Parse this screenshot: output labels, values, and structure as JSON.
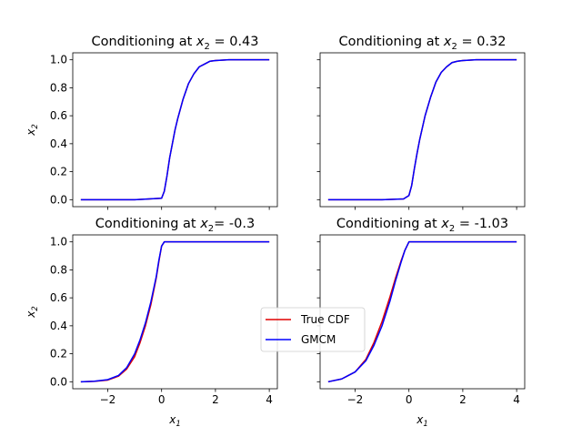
{
  "chart_data": [
    {
      "type": "line",
      "title": "Conditioning at x₂ = 0.43",
      "title_parts": {
        "prefix": "Conditioning at ",
        "var": "x",
        "sub": "2",
        "suffix": " = 0.43"
      },
      "xlabel": "",
      "ylabel": "x₂",
      "ylabel_parts": {
        "var": "x",
        "sub": "2"
      },
      "xlim": [
        -3.3,
        4.3
      ],
      "ylim": [
        -0.05,
        1.05
      ],
      "xticks": [
        -2,
        0,
        2,
        4
      ],
      "xtick_labels": [
        "",
        "",
        "",
        ""
      ],
      "yticks": [
        0.0,
        0.2,
        0.4,
        0.6,
        0.8,
        1.0
      ],
      "ytick_labels": [
        "0.0",
        "0.2",
        "0.4",
        "0.6",
        "0.8",
        "1.0"
      ],
      "grid": false,
      "series": [
        {
          "name": "True CDF",
          "color": "#e00000",
          "x": [
            -3,
            -1,
            0,
            0.1,
            0.2,
            0.3,
            0.4,
            0.5,
            0.6,
            0.8,
            1.0,
            1.2,
            1.4,
            1.6,
            1.8,
            2.0,
            2.5,
            3,
            4
          ],
          "y": [
            0,
            0,
            0.01,
            0.06,
            0.17,
            0.3,
            0.4,
            0.5,
            0.58,
            0.72,
            0.83,
            0.9,
            0.95,
            0.97,
            0.99,
            0.995,
            1.0,
            1.0,
            1.0
          ]
        },
        {
          "name": "GMCM",
          "color": "#0000ff",
          "x": [
            -3,
            -1,
            0,
            0.1,
            0.2,
            0.3,
            0.4,
            0.5,
            0.6,
            0.8,
            1.0,
            1.2,
            1.4,
            1.6,
            1.8,
            2.0,
            2.5,
            3,
            4
          ],
          "y": [
            0,
            0,
            0.01,
            0.06,
            0.17,
            0.3,
            0.4,
            0.5,
            0.58,
            0.72,
            0.83,
            0.9,
            0.95,
            0.97,
            0.99,
            0.995,
            1.0,
            1.0,
            1.0
          ]
        }
      ]
    },
    {
      "type": "line",
      "title": "Conditioning at x₂ =  0.32",
      "title_parts": {
        "prefix": "Conditioning at ",
        "var": "x",
        "sub": "2",
        "suffix": " =  0.32"
      },
      "xlabel": "",
      "ylabel": "",
      "xlim": [
        -3.3,
        4.3
      ],
      "ylim": [
        -0.05,
        1.05
      ],
      "xticks": [
        -2,
        0,
        2,
        4
      ],
      "xtick_labels": [
        "",
        "",
        "",
        ""
      ],
      "yticks": [
        0.0,
        0.2,
        0.4,
        0.6,
        0.8,
        1.0
      ],
      "ytick_labels": [
        "",
        "",
        "",
        "",
        "",
        ""
      ],
      "grid": false,
      "series": [
        {
          "name": "True CDF",
          "color": "#e00000",
          "x": [
            -3,
            -1,
            -0.2,
            0,
            0.1,
            0.2,
            0.3,
            0.4,
            0.6,
            0.8,
            1.0,
            1.2,
            1.4,
            1.6,
            1.8,
            2.0,
            2.5,
            3,
            4
          ],
          "y": [
            0,
            0,
            0.005,
            0.03,
            0.1,
            0.22,
            0.33,
            0.43,
            0.6,
            0.73,
            0.84,
            0.91,
            0.95,
            0.98,
            0.99,
            0.995,
            1.0,
            1.0,
            1.0
          ]
        },
        {
          "name": "GMCM",
          "color": "#0000ff",
          "x": [
            -3,
            -1,
            -0.2,
            0,
            0.1,
            0.2,
            0.3,
            0.4,
            0.6,
            0.8,
            1.0,
            1.2,
            1.4,
            1.6,
            1.8,
            2.0,
            2.5,
            3,
            4
          ],
          "y": [
            0,
            0,
            0.005,
            0.03,
            0.1,
            0.22,
            0.33,
            0.43,
            0.6,
            0.73,
            0.84,
            0.91,
            0.95,
            0.98,
            0.99,
            0.995,
            1.0,
            1.0,
            1.0
          ]
        }
      ]
    },
    {
      "type": "line",
      "title": "Conditioning at x₂= -0.3",
      "title_parts": {
        "prefix": "Conditioning at ",
        "var": "x",
        "sub": "2",
        "suffix": "= -0.3"
      },
      "xlabel": "x₁",
      "xlabel_parts": {
        "var": "x",
        "sub": "1"
      },
      "ylabel": "x₂",
      "ylabel_parts": {
        "var": "x",
        "sub": "2"
      },
      "xlim": [
        -3.3,
        4.3
      ],
      "ylim": [
        -0.05,
        1.05
      ],
      "xticks": [
        -2,
        0,
        2,
        4
      ],
      "xtick_labels": [
        "−2",
        "0",
        "2",
        "4"
      ],
      "yticks": [
        0.0,
        0.2,
        0.4,
        0.6,
        0.8,
        1.0
      ],
      "ytick_labels": [
        "0.0",
        "0.2",
        "0.4",
        "0.6",
        "0.8",
        "1.0"
      ],
      "grid": false,
      "series": [
        {
          "name": "True CDF",
          "color": "#e00000",
          "x": [
            -3,
            -2.5,
            -2,
            -1.6,
            -1.3,
            -1.0,
            -0.8,
            -0.6,
            -0.4,
            -0.2,
            -0.1,
            0,
            0.1,
            1,
            2,
            3,
            4
          ],
          "y": [
            0,
            0.003,
            0.012,
            0.04,
            0.09,
            0.18,
            0.28,
            0.4,
            0.55,
            0.74,
            0.86,
            0.97,
            1.0,
            1.0,
            1.0,
            1.0,
            1.0
          ]
        },
        {
          "name": "GMCM",
          "color": "#0000ff",
          "x": [
            -3,
            -2.5,
            -2,
            -1.6,
            -1.3,
            -1.0,
            -0.8,
            -0.6,
            -0.4,
            -0.2,
            -0.1,
            0,
            0.1,
            1,
            2,
            3,
            4
          ],
          "y": [
            0,
            0.004,
            0.015,
            0.045,
            0.1,
            0.2,
            0.3,
            0.42,
            0.57,
            0.75,
            0.87,
            0.97,
            1.0,
            1.0,
            1.0,
            1.0,
            1.0
          ]
        }
      ]
    },
    {
      "type": "line",
      "title": "Conditioning at x₂ = -1.03",
      "title_parts": {
        "prefix": "Conditioning at ",
        "var": "x",
        "sub": "2",
        "suffix": " = -1.03"
      },
      "xlabel": "x₁",
      "xlabel_parts": {
        "var": "x",
        "sub": "1"
      },
      "ylabel": "",
      "xlim": [
        -3.3,
        4.3
      ],
      "ylim": [
        -0.05,
        1.05
      ],
      "xticks": [
        -2,
        0,
        2,
        4
      ],
      "xtick_labels": [
        "−2",
        "0",
        "2",
        "4"
      ],
      "yticks": [
        0.0,
        0.2,
        0.4,
        0.6,
        0.8,
        1.0
      ],
      "ytick_labels": [
        "",
        "",
        "",
        "",
        "",
        ""
      ],
      "grid": false,
      "series": [
        {
          "name": "True CDF",
          "color": "#e00000",
          "x": [
            -3,
            -2.5,
            -2,
            -1.6,
            -1.3,
            -1.0,
            -0.7,
            -0.5,
            -0.3,
            -0.15,
            0,
            0.1,
            1,
            2,
            3,
            4
          ],
          "y": [
            0,
            0.02,
            0.07,
            0.16,
            0.28,
            0.43,
            0.61,
            0.74,
            0.86,
            0.94,
            1.0,
            1.0,
            1.0,
            1.0,
            1.0,
            1.0
          ]
        },
        {
          "name": "GMCM",
          "color": "#0000ff",
          "x": [
            -3,
            -2.5,
            -2,
            -1.6,
            -1.3,
            -1.0,
            -0.7,
            -0.5,
            -0.3,
            -0.15,
            0,
            0.1,
            1,
            2,
            3,
            4
          ],
          "y": [
            0,
            0.02,
            0.07,
            0.15,
            0.26,
            0.4,
            0.58,
            0.72,
            0.85,
            0.94,
            1.0,
            1.0,
            1.0,
            1.0,
            1.0,
            1.0
          ]
        }
      ]
    }
  ],
  "legend": {
    "placement": "center",
    "entries": [
      {
        "label": "True CDF",
        "color": "#e00000"
      },
      {
        "label": "GMCM",
        "color": "#0000ff"
      }
    ]
  }
}
